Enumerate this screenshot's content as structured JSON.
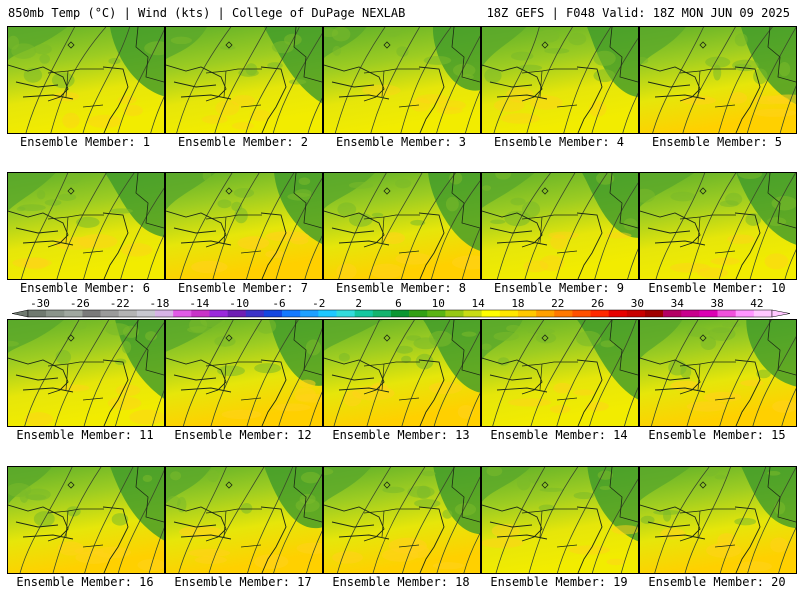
{
  "header": {
    "title_left": "850mb Temp (°C) | Wind (kts) | College of DuPage NEXLAB",
    "title_right": "18Z GEFS | F048 Valid: 18Z MON JUN 09 2025"
  },
  "panels": [
    {
      "label": "Ensemble Member: 1",
      "warm": 0.35
    },
    {
      "label": "Ensemble Member: 2",
      "warm": 0.3
    },
    {
      "label": "Ensemble Member: 3",
      "warm": 0.3
    },
    {
      "label": "Ensemble Member: 4",
      "warm": 0.35
    },
    {
      "label": "Ensemble Member: 5",
      "warm": 0.55
    },
    {
      "label": "Ensemble Member: 6",
      "warm": 0.4
    },
    {
      "label": "Ensemble Member: 7",
      "warm": 0.65
    },
    {
      "label": "Ensemble Member: 8",
      "warm": 0.55
    },
    {
      "label": "Ensemble Member: 9",
      "warm": 0.35
    },
    {
      "label": "Ensemble Member: 10",
      "warm": 0.4
    },
    {
      "label": "Ensemble Member: 11",
      "warm": 0.4
    },
    {
      "label": "Ensemble Member: 12",
      "warm": 0.55
    },
    {
      "label": "Ensemble Member: 13",
      "warm": 0.55
    },
    {
      "label": "Ensemble Member: 14",
      "warm": 0.45
    },
    {
      "label": "Ensemble Member: 15",
      "warm": 0.6
    },
    {
      "label": "Ensemble Member: 16",
      "warm": 0.55
    },
    {
      "label": "Ensemble Member: 17",
      "warm": 0.6
    },
    {
      "label": "Ensemble Member: 18",
      "warm": 0.6
    },
    {
      "label": "Ensemble Member: 19",
      "warm": 0.45
    },
    {
      "label": "Ensemble Member: 20",
      "warm": 0.55
    }
  ],
  "colorbar": {
    "ticks": [
      "-30",
      "-26",
      "-22",
      "-18",
      "-14",
      "-10",
      "-6",
      "-2",
      "2",
      "6",
      "10",
      "14",
      "18",
      "22",
      "26",
      "30",
      "34",
      "38",
      "42"
    ],
    "colors": [
      "#707a70",
      "#8a948a",
      "#a0a8a0",
      "#7a7a7a",
      "#9a9a9a",
      "#b4b4b4",
      "#c8c8d0",
      "#d7b4e6",
      "#e15ae6",
      "#c832c8",
      "#9a28dc",
      "#6e1eb4",
      "#3c32c8",
      "#1446e1",
      "#1478ff",
      "#1ea0ff",
      "#1ec8ff",
      "#32dcdc",
      "#14c8a0",
      "#14b46e",
      "#0a9632",
      "#32a014",
      "#5ab414",
      "#96c814",
      "#c8dc14",
      "#ffff00",
      "#ffe600",
      "#ffc800",
      "#ffa000",
      "#ff7800",
      "#ff5000",
      "#ff2800",
      "#e60000",
      "#c80000",
      "#a00000",
      "#b40064",
      "#c8008c",
      "#dc00b4",
      "#f050dc",
      "#ff96ff",
      "#ffc8ff"
    ]
  }
}
